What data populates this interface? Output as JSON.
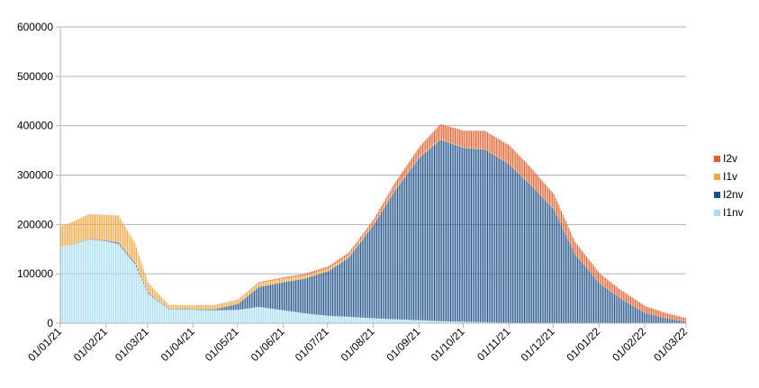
{
  "chart_data": {
    "type": "bar",
    "stacked": true,
    "xlabel": "",
    "ylabel": "",
    "ylim": [
      0,
      600000
    ],
    "yticks": [
      0,
      100000,
      200000,
      300000,
      400000,
      500000,
      600000
    ],
    "ytick_labels": [
      "0",
      "100000",
      "200000",
      "300000",
      "400000",
      "500000",
      "600000"
    ],
    "x_start": "2021-01-01",
    "x_end": "2022-03-01",
    "xtick_labels": [
      "01/01/21",
      "01/02/21",
      "01/03/21",
      "01/04/21",
      "01/05/21",
      "01/06/21",
      "01/07/21",
      "01/08/21",
      "01/09/21",
      "01/10/21",
      "01/11/21",
      "01/12/21",
      "01/01/22",
      "01/02/22",
      "01/03/22"
    ],
    "grid": true,
    "legend_position": "right",
    "series": [
      {
        "name": "I1nv",
        "color": "#a6dcf7",
        "x": [
          "2021-01-01",
          "2021-01-07",
          "2021-01-20",
          "2021-02-01",
          "2021-02-09",
          "2021-02-20",
          "2021-03-01",
          "2021-03-15",
          "2021-04-01",
          "2021-04-15",
          "2021-05-01",
          "2021-05-15",
          "2021-06-01",
          "2021-06-15",
          "2021-07-01",
          "2021-07-15",
          "2021-08-01",
          "2021-08-15",
          "2021-09-01",
          "2021-09-15",
          "2021-10-01",
          "2021-10-15",
          "2021-11-01",
          "2021-12-01",
          "2022-01-01",
          "2022-03-01"
        ],
        "values": [
          155000,
          158000,
          170000,
          166000,
          160000,
          120000,
          60000,
          28000,
          27000,
          26000,
          27000,
          33000,
          26000,
          20000,
          15000,
          13000,
          10000,
          8000,
          6000,
          4000,
          3000,
          2000,
          1000,
          500,
          300,
          100
        ]
      },
      {
        "name": "I2nv",
        "color": "#1d4f87",
        "x": [
          "2021-01-01",
          "2021-01-07",
          "2021-01-20",
          "2021-02-01",
          "2021-02-09",
          "2021-02-20",
          "2021-03-01",
          "2021-03-15",
          "2021-04-01",
          "2021-04-15",
          "2021-05-01",
          "2021-05-15",
          "2021-06-01",
          "2021-06-15",
          "2021-07-01",
          "2021-07-15",
          "2021-08-01",
          "2021-08-15",
          "2021-09-01",
          "2021-09-15",
          "2021-10-01",
          "2021-10-15",
          "2021-11-01",
          "2021-11-15",
          "2021-12-01",
          "2021-12-15",
          "2022-01-01",
          "2022-01-15",
          "2022-02-01",
          "2022-02-15",
          "2022-03-01"
        ],
        "values": [
          0,
          0,
          1000,
          1500,
          3000,
          3000,
          2000,
          1000,
          1000,
          2000,
          12000,
          40000,
          57000,
          70000,
          90000,
          120000,
          190000,
          260000,
          330000,
          368000,
          352000,
          350000,
          320000,
          280000,
          230000,
          140000,
          80000,
          50000,
          20000,
          10000,
          3000
        ]
      },
      {
        "name": "I1v",
        "color": "#f7a43a",
        "x": [
          "2021-01-01",
          "2021-01-07",
          "2021-01-20",
          "2021-02-01",
          "2021-02-09",
          "2021-02-20",
          "2021-03-01",
          "2021-03-15",
          "2021-04-01",
          "2021-04-15",
          "2021-05-01",
          "2021-05-15",
          "2021-06-01",
          "2021-06-15",
          "2021-07-01",
          "2021-07-15",
          "2021-08-01",
          "2021-09-01",
          "2021-10-01",
          "2022-03-01"
        ],
        "values": [
          42000,
          45000,
          50000,
          52000,
          55000,
          40000,
          20000,
          8000,
          8000,
          8000,
          8000,
          8000,
          7000,
          6000,
          5000,
          4000,
          3000,
          2000,
          1000,
          200
        ]
      },
      {
        "name": "I2v",
        "color": "#ee5a24",
        "x": [
          "2021-01-01",
          "2021-01-07",
          "2021-01-20",
          "2021-02-01",
          "2021-02-09",
          "2021-02-20",
          "2021-03-01",
          "2021-03-15",
          "2021-04-01",
          "2021-04-15",
          "2021-05-01",
          "2021-05-15",
          "2021-06-01",
          "2021-06-15",
          "2021-07-01",
          "2021-07-15",
          "2021-08-01",
          "2021-08-15",
          "2021-09-01",
          "2021-09-15",
          "2021-10-01",
          "2021-10-15",
          "2021-11-01",
          "2021-11-15",
          "2021-12-01",
          "2021-12-15",
          "2022-01-01",
          "2022-01-15",
          "2022-02-01",
          "2022-02-15",
          "2022-03-01"
        ],
        "values": [
          0,
          0,
          0,
          0,
          0,
          0,
          0,
          0,
          0,
          500,
          1000,
          2000,
          3000,
          4000,
          5000,
          6000,
          8000,
          13000,
          20000,
          30000,
          34000,
          37000,
          38000,
          35000,
          30000,
          25000,
          20000,
          17000,
          14000,
          10000,
          7000
        ]
      }
    ],
    "legend": [
      "I2v",
      "I1v",
      "I2nv",
      "I1nv"
    ]
  }
}
